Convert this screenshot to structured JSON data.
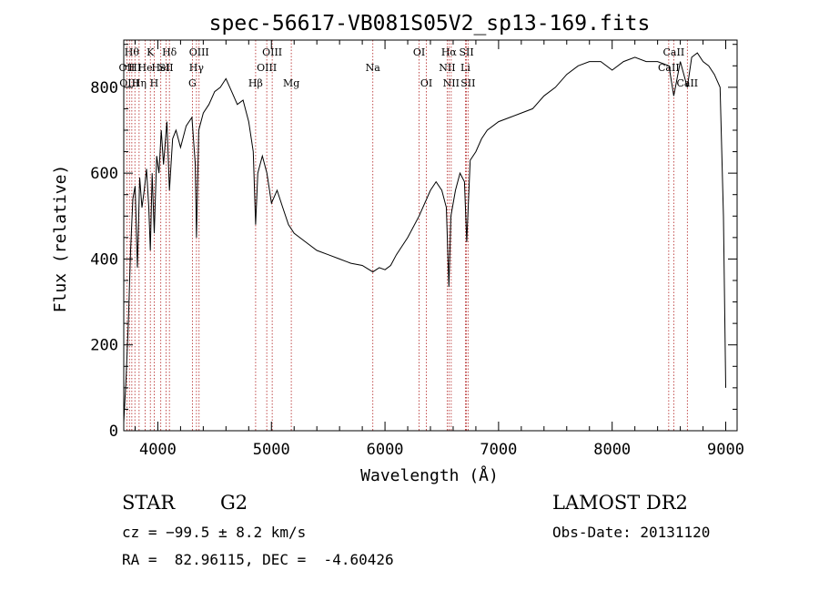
{
  "chart_data": {
    "type": "line",
    "title": "spec-56617-VB081S05V2_sp13-169.fits",
    "xlabel": "Wavelength (Å)",
    "ylabel": "Flux (relative)",
    "xlim": [
      3700,
      9100
    ],
    "ylim": [
      0,
      910
    ],
    "xticks": [
      4000,
      5000,
      6000,
      7000,
      8000,
      9000
    ],
    "yticks": [
      0,
      200,
      400,
      600,
      800
    ],
    "grid": false,
    "line_color": "#000000",
    "marker_color": "#b22222",
    "series": [
      {
        "x": [
          3700,
          3720,
          3740,
          3760,
          3780,
          3800,
          3820,
          3840,
          3860,
          3880,
          3900,
          3920,
          3934,
          3950,
          3968,
          3990,
          4010,
          4030,
          4050,
          4080,
          4102,
          4130,
          4160,
          4200,
          4250,
          4300,
          4330,
          4340,
          4360,
          4400,
          4450,
          4500,
          4550,
          4600,
          4650,
          4700,
          4750,
          4800,
          4840,
          4861,
          4880,
          4920,
          4960,
          5000,
          5050,
          5100,
          5150,
          5200,
          5300,
          5400,
          5500,
          5600,
          5700,
          5800,
          5893,
          5950,
          6000,
          6050,
          6100,
          6200,
          6300,
          6400,
          6450,
          6500,
          6540,
          6563,
          6580,
          6620,
          6660,
          6700,
          6720,
          6750,
          6800,
          6850,
          6900,
          7000,
          7100,
          7200,
          7300,
          7400,
          7500,
          7600,
          7700,
          7800,
          7900,
          8000,
          8100,
          8200,
          8300,
          8400,
          8500,
          8542,
          8600,
          8662,
          8700,
          8750,
          8800,
          8850,
          8900,
          8950,
          8980,
          9000
        ],
        "y": [
          20,
          120,
          250,
          420,
          540,
          570,
          380,
          590,
          520,
          560,
          610,
          520,
          420,
          600,
          460,
          640,
          600,
          700,
          620,
          720,
          560,
          680,
          700,
          660,
          710,
          730,
          620,
          450,
          700,
          740,
          760,
          790,
          800,
          820,
          790,
          760,
          770,
          720,
          650,
          480,
          600,
          640,
          600,
          530,
          560,
          520,
          480,
          460,
          440,
          420,
          410,
          400,
          390,
          385,
          370,
          380,
          375,
          385,
          410,
          450,
          500,
          560,
          580,
          560,
          520,
          335,
          500,
          560,
          600,
          580,
          440,
          630,
          650,
          680,
          700,
          720,
          730,
          740,
          750,
          780,
          800,
          830,
          850,
          860,
          860,
          840,
          860,
          870,
          860,
          860,
          850,
          780,
          860,
          800,
          870,
          880,
          860,
          850,
          830,
          800,
          500,
          100
        ]
      }
    ],
    "lines": [
      {
        "x": 3727,
        "label": "OII",
        "row": 1
      },
      {
        "x": 3750,
        "label": "OIII",
        "row": 2
      },
      {
        "x": 3771,
        "label": "Hθ",
        "row": 0
      },
      {
        "x": 3798,
        "label": "HI",
        "row": 1
      },
      {
        "x": 3835,
        "label": "Hη",
        "row": 2
      },
      {
        "x": 3889,
        "label": "He",
        "row": 1
      },
      {
        "x": 3934,
        "label": "K",
        "row": 0
      },
      {
        "x": 3968,
        "label": "H",
        "row": 2
      },
      {
        "x": 4026,
        "label": "HeI",
        "row": 1
      },
      {
        "x": 4072,
        "label": "SII",
        "row": 1
      },
      {
        "x": 4102,
        "label": "Hδ",
        "row": 0
      },
      {
        "x": 4304,
        "label": "G",
        "row": 2
      },
      {
        "x": 4340,
        "label": "Hγ",
        "row": 1
      },
      {
        "x": 4363,
        "label": "OIII",
        "row": 0
      },
      {
        "x": 4861,
        "label": "Hβ",
        "row": 2
      },
      {
        "x": 4959,
        "label": "OIII",
        "row": 1
      },
      {
        "x": 5007,
        "label": "OIII",
        "row": 0
      },
      {
        "x": 5175,
        "label": "Mg",
        "row": 2
      },
      {
        "x": 5893,
        "label": "Na",
        "row": 1
      },
      {
        "x": 6300,
        "label": "OI",
        "row": 0
      },
      {
        "x": 6364,
        "label": "OI",
        "row": 2
      },
      {
        "x": 6548,
        "label": "NII",
        "row": 1
      },
      {
        "x": 6563,
        "label": "Hα",
        "row": 0
      },
      {
        "x": 6583,
        "label": "NII",
        "row": 2
      },
      {
        "x": 6708,
        "label": "Li",
        "row": 1
      },
      {
        "x": 6717,
        "label": "SII",
        "row": 0
      },
      {
        "x": 6731,
        "label": "SII",
        "row": 2
      },
      {
        "x": 8498,
        "label": "CaII",
        "row": 1
      },
      {
        "x": 8542,
        "label": "CaII",
        "row": 0
      },
      {
        "x": 8662,
        "label": "CaII",
        "row": 2
      }
    ]
  },
  "info": {
    "object_type": "STAR",
    "subclass": "G2",
    "survey": "LAMOST DR2",
    "velocity": "cz = −99.5 ± 8.2 km/s",
    "obs_date": "Obs-Date: 20131120",
    "coords": "RA =  82.96115, DEC =  -4.60426"
  }
}
